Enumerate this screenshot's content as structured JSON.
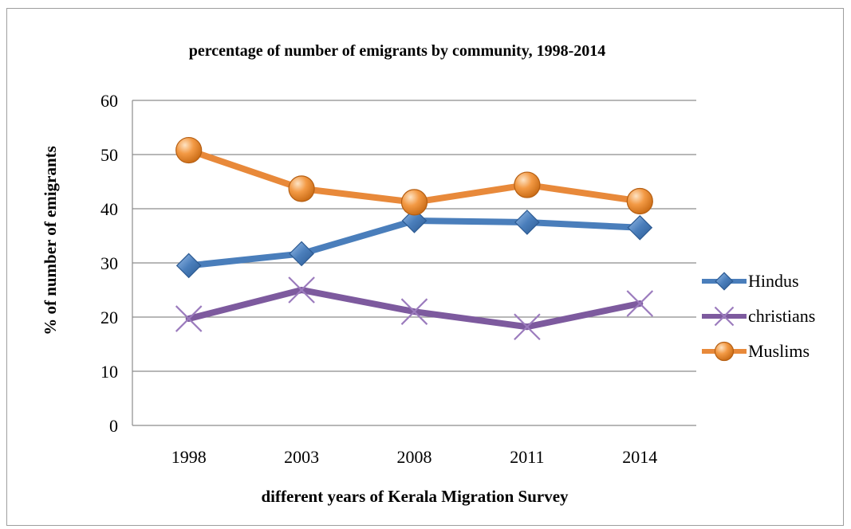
{
  "chart_data": {
    "type": "line",
    "title": "percentage of number of emigrants by community, 1998-2014",
    "xlabel": "different years of Kerala Migration Survey",
    "ylabel": "% of number of emigrants",
    "categories": [
      "1998",
      "2003",
      "2008",
      "2011",
      "2014"
    ],
    "ylim": [
      0,
      60
    ],
    "yticks": [
      0,
      10,
      20,
      30,
      40,
      50,
      60
    ],
    "grid": true,
    "legend_position": "right",
    "series": [
      {
        "name": "Hindus",
        "values": [
          29.5,
          31.7,
          37.8,
          37.5,
          36.5
        ],
        "color": "#4a7ebb",
        "marker": "diamond"
      },
      {
        "name": "christians",
        "values": [
          19.7,
          25.0,
          21.0,
          18.2,
          22.5
        ],
        "color": "#7d5a9e",
        "marker": "x"
      },
      {
        "name": "Muslims",
        "values": [
          50.8,
          43.7,
          41.2,
          44.4,
          41.4
        ],
        "color": "#e8893a",
        "marker": "circle"
      }
    ]
  }
}
